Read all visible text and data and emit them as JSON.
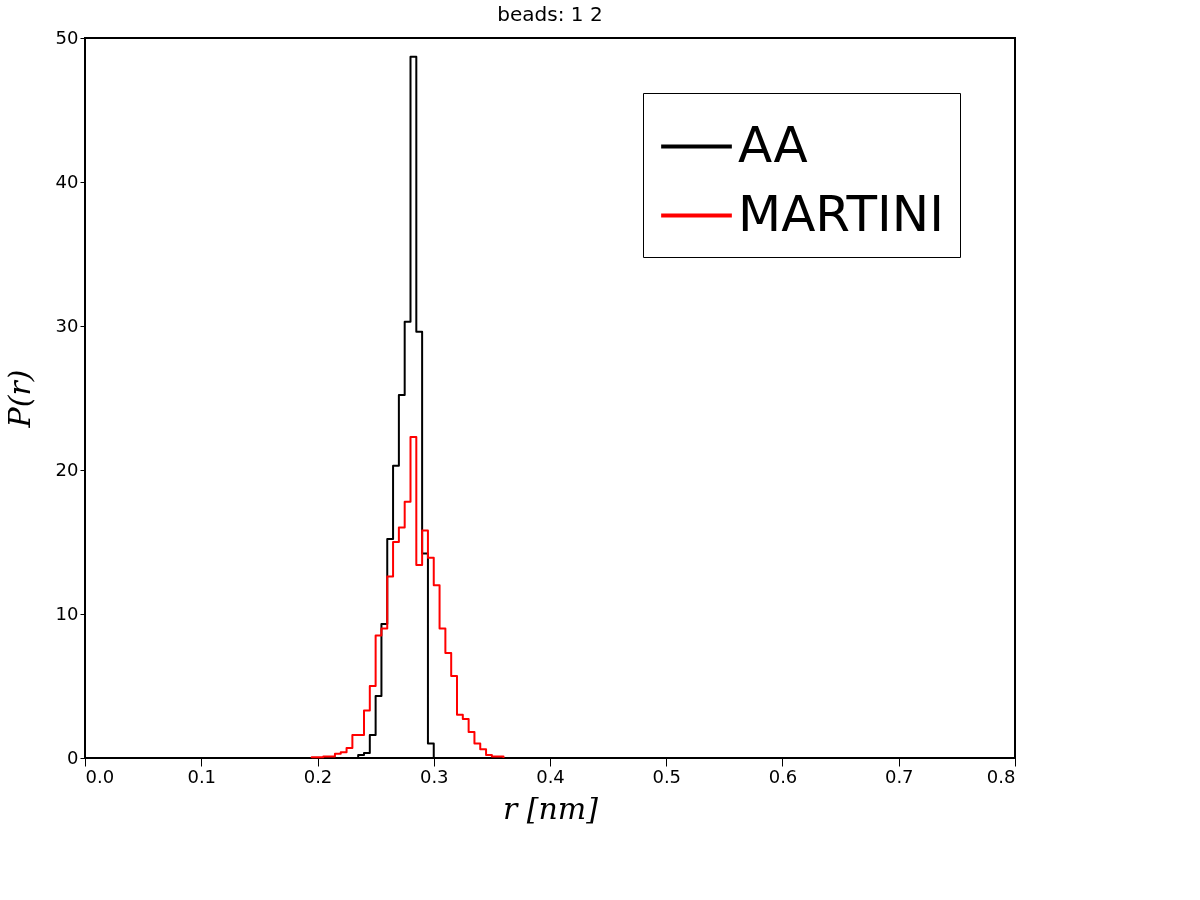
{
  "chart_data": {
    "type": "histogram",
    "title": "beads: 1 2",
    "xlabel": "r  [nm]",
    "ylabel": "P(r)",
    "bins": [
      0.195,
      0.2,
      0.205,
      0.21,
      0.215,
      0.22,
      0.225,
      0.23,
      0.235,
      0.24,
      0.245,
      0.25,
      0.255,
      0.26,
      0.265,
      0.27,
      0.275,
      0.28,
      0.285,
      0.29,
      0.295,
      0.3,
      0.305,
      0.31,
      0.315,
      0.32,
      0.325,
      0.33,
      0.335,
      0.34,
      0.345,
      0.35,
      0.355,
      0.36
    ],
    "series": [
      {
        "name": "AA",
        "color": "#000000",
        "values": [
          0,
          0,
          0,
          0,
          0,
          0,
          0,
          0,
          0.2,
          0.35,
          1.6,
          4.3,
          9.3,
          15.2,
          20.3,
          25.2,
          30.3,
          48.7,
          29.6,
          14.2,
          1.0,
          0,
          0,
          0,
          0,
          0,
          0,
          0,
          0,
          0,
          0,
          0,
          0
        ]
      },
      {
        "name": "MARTINI",
        "color": "#ff0000",
        "values": [
          0.05,
          0.05,
          0.1,
          0.1,
          0.3,
          0.4,
          0.7,
          1.6,
          1.6,
          3.3,
          5.0,
          8.5,
          9.0,
          12.6,
          15.0,
          16.0,
          17.8,
          22.3,
          13.4,
          15.8,
          13.9,
          12.0,
          9.0,
          7.3,
          5.7,
          3.0,
          2.7,
          1.8,
          1.0,
          0.6,
          0.2,
          0.1,
          0.1
        ]
      }
    ],
    "xlim": [
      0,
      0.8
    ],
    "xticks": [
      {
        "value": 0,
        "label": "0.0"
      },
      0.1,
      0.2,
      0.3,
      0.4,
      0.5,
      0.6,
      0.7,
      0.8
    ],
    "ylim": [
      0,
      50
    ],
    "yticks": [
      0,
      10,
      20,
      30,
      40,
      50
    ],
    "grid": false,
    "legend": "top right"
  }
}
